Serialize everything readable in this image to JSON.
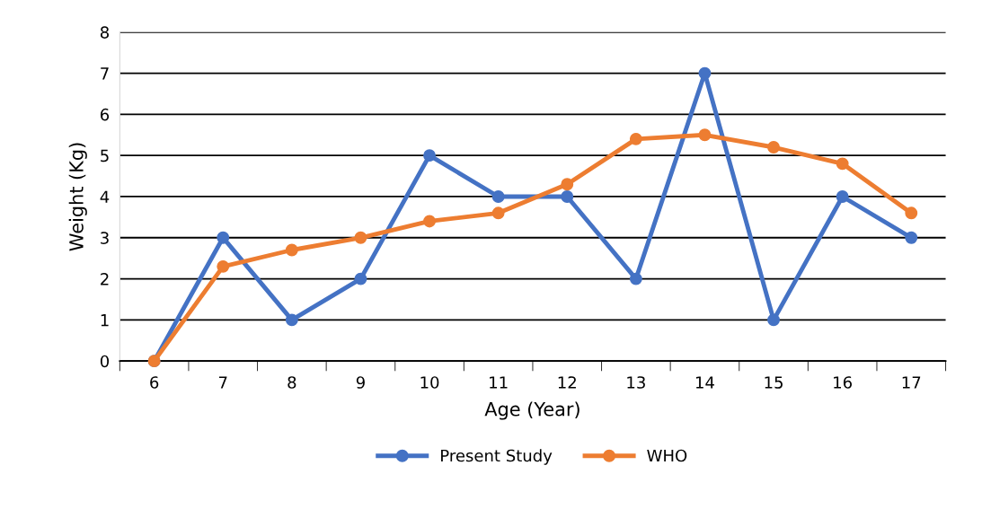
{
  "chart_data": {
    "type": "line",
    "xlabel": "Age (Year)",
    "ylabel": "Weight (Kg)",
    "categories": [
      "6",
      "7",
      "8",
      "9",
      "10",
      "11",
      "12",
      "13",
      "14",
      "15",
      "16",
      "17"
    ],
    "series": [
      {
        "name": "Present Study",
        "color": "#4472c4",
        "values": [
          0,
          3,
          1,
          2,
          5,
          4,
          4,
          2,
          7,
          1,
          4,
          3
        ]
      },
      {
        "name": "WHO",
        "color": "#ed7d31",
        "values": [
          0,
          2.3,
          2.7,
          3.0,
          3.4,
          3.6,
          4.3,
          5.4,
          5.5,
          5.2,
          4.8,
          3.6
        ]
      }
    ],
    "ylim": [
      0,
      8
    ],
    "yticks": [
      0,
      1,
      2,
      3,
      4,
      5,
      6,
      7,
      8
    ],
    "grid": "y",
    "legend": "bottom",
    "marker": "circle",
    "line_style": "solid"
  }
}
